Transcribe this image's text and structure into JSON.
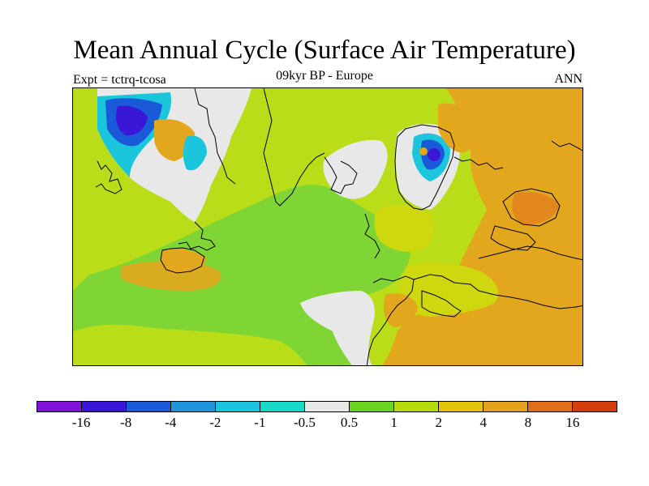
{
  "title": "Mean Annual Cycle (Surface Air Temperature)",
  "experiment": "Expt = tctrq-tcosa",
  "subtitle": "09kyr BP - Europe",
  "season": "ANN",
  "colorbar": {
    "colors": [
      "#7f13d9",
      "#3a16d6",
      "#1a5ad8",
      "#1f96dc",
      "#1cc3dc",
      "#17d9c8",
      "#e8e8e8",
      "#6cd421",
      "#b7dc0c",
      "#e3c50c",
      "#e4a21d",
      "#e06d1a",
      "#d43d0c"
    ],
    "labels": [
      "-16",
      "-8",
      "-4",
      "-2",
      "-1",
      "-0.5",
      "0.5",
      "1",
      "2",
      "4",
      "8",
      "16"
    ]
  },
  "map_colors": {
    "ocean_green": "#7fd534",
    "lime": "#b9dd19",
    "yellow": "#cfd80f",
    "orange": "#e3a71d",
    "gray": "#e8e8e8",
    "cyan": "#1bc6dc",
    "blue": "#1a5ad8",
    "darkblue": "#3a16d6"
  }
}
